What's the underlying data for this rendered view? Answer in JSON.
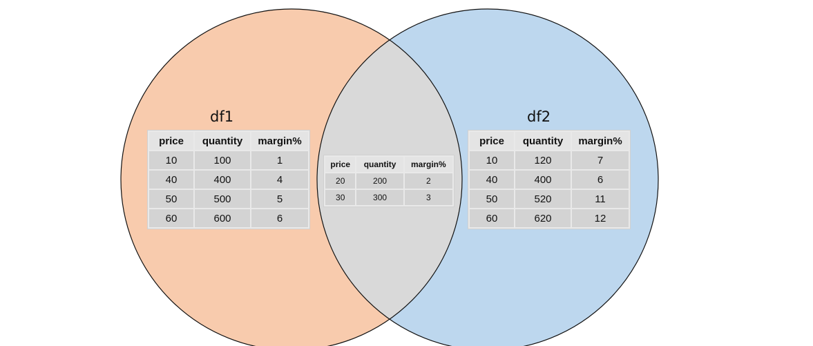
{
  "colors": {
    "left": "#f8cbad",
    "right": "#bdd7ee",
    "overlap": "#d9d9d9",
    "stroke": "#111111"
  },
  "left": {
    "label": "df1",
    "columns": [
      "price",
      "quantity",
      "margin%"
    ],
    "rows": [
      [
        "10",
        "100",
        "1"
      ],
      [
        "40",
        "400",
        "4"
      ],
      [
        "50",
        "500",
        "5"
      ],
      [
        "60",
        "600",
        "6"
      ]
    ]
  },
  "right": {
    "label": "df2",
    "columns": [
      "price",
      "quantity",
      "margin%"
    ],
    "rows": [
      [
        "10",
        "120",
        "7"
      ],
      [
        "40",
        "400",
        "6"
      ],
      [
        "50",
        "520",
        "11"
      ],
      [
        "60",
        "620",
        "12"
      ]
    ]
  },
  "overlap": {
    "columns": [
      "price",
      "quantity",
      "margin%"
    ],
    "rows": [
      [
        "20",
        "200",
        "2"
      ],
      [
        "30",
        "300",
        "3"
      ]
    ]
  }
}
